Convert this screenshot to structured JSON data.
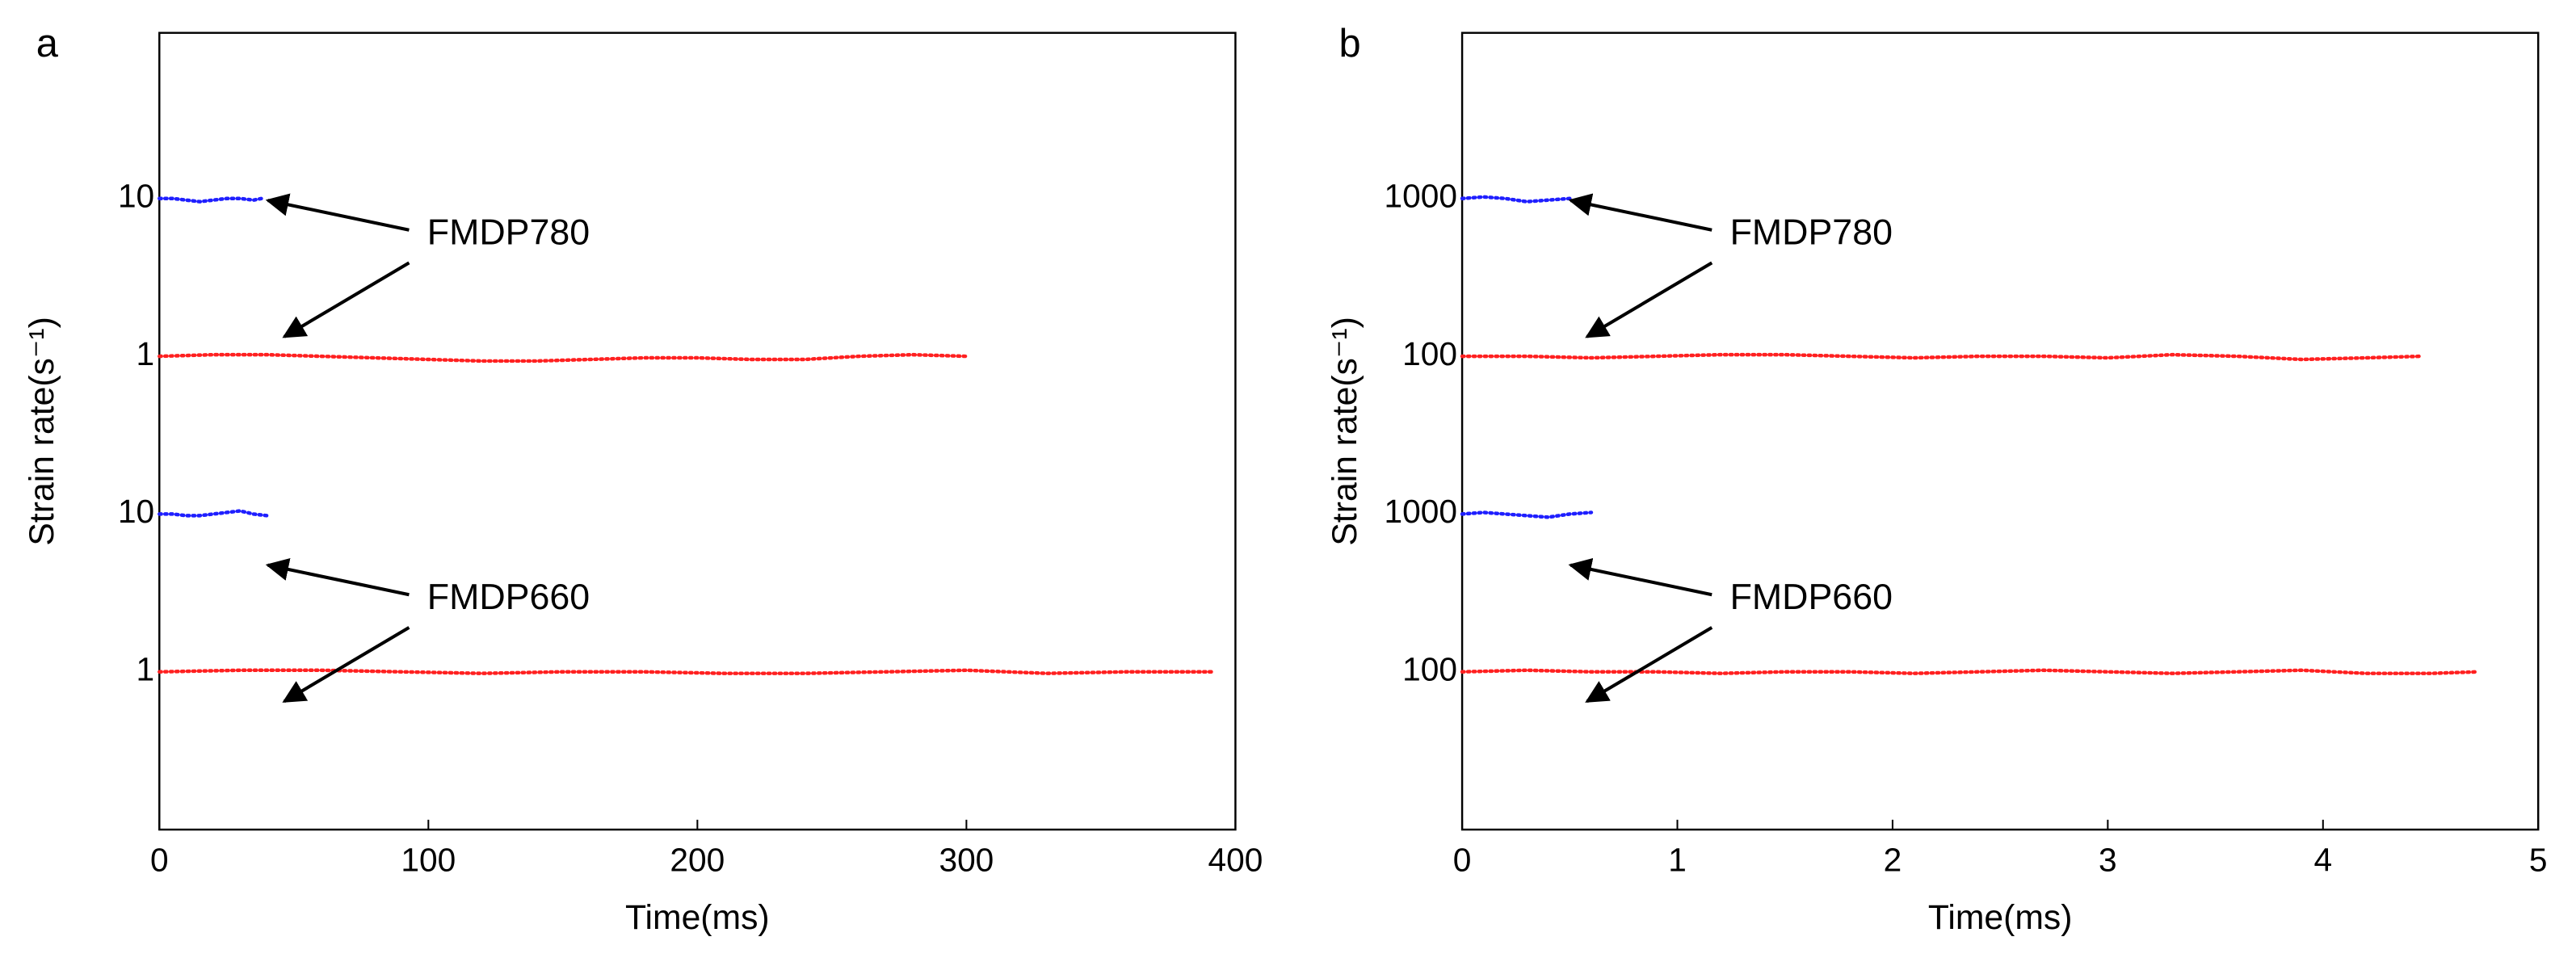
{
  "chart_data": [
    {
      "type": "line",
      "panel_label": "a",
      "xlabel": "Time(ms)",
      "ylabel": "Strain rate(s⁻¹)",
      "xlim": [
        0,
        400
      ],
      "xticks": [
        0,
        100,
        200,
        300,
        400
      ],
      "ylim": [
        0,
        5.05
      ],
      "yticks": [
        1,
        {
          "value": 2,
          "label": "10"
        },
        {
          "value": 3,
          "label": "1"
        },
        {
          "value": 4,
          "label": "10"
        }
      ],
      "annotations": [
        "FMDP780",
        "FMDP660"
      ],
      "series": [
        {
          "color": "#1f1fff",
          "x": [
            0,
            5,
            10,
            15,
            20,
            25,
            30,
            35,
            38
          ],
          "values": [
            4.0,
            4.0,
            3.99,
            3.98,
            3.99,
            4.0,
            4.0,
            3.99,
            4.0
          ]
        },
        {
          "color": "#ff2020",
          "x": [
            0,
            20,
            40,
            60,
            80,
            100,
            120,
            140,
            160,
            180,
            200,
            220,
            240,
            260,
            280,
            300
          ],
          "values": [
            3.0,
            3.01,
            3.01,
            3.0,
            2.99,
            2.98,
            2.97,
            2.97,
            2.98,
            2.99,
            2.99,
            2.98,
            2.98,
            3.0,
            3.01,
            3.0
          ]
        },
        {
          "color": "#1f1fff",
          "x": [
            0,
            5,
            10,
            15,
            20,
            25,
            30,
            35,
            40
          ],
          "values": [
            2.0,
            2.0,
            1.99,
            1.99,
            2.0,
            2.01,
            2.02,
            2.0,
            1.99
          ]
        },
        {
          "color": "#ff2020",
          "x": [
            0,
            30,
            60,
            90,
            120,
            150,
            180,
            210,
            240,
            270,
            300,
            330,
            360,
            392
          ],
          "values": [
            1.0,
            1.01,
            1.01,
            1.0,
            0.99,
            1.0,
            1.0,
            0.99,
            0.99,
            1.0,
            1.01,
            0.99,
            1.0,
            1.0
          ]
        }
      ]
    },
    {
      "type": "line",
      "panel_label": "b",
      "xlabel": "Time(ms)",
      "ylabel": "Strain rate(s⁻¹)",
      "xlim": [
        0,
        5
      ],
      "xticks": [
        0,
        1,
        2,
        3,
        4,
        5
      ],
      "ylim": [
        0,
        5.05
      ],
      "yticks": [
        {
          "value": 1,
          "label": "100"
        },
        {
          "value": 2,
          "label": "1000"
        },
        {
          "value": 3,
          "label": "100"
        },
        {
          "value": 4,
          "label": "1000"
        }
      ],
      "annotations": [
        "FMDP780",
        "FMDP660"
      ],
      "series": [
        {
          "color": "#1f1fff",
          "x": [
            0,
            0.1,
            0.2,
            0.3,
            0.4,
            0.5
          ],
          "values": [
            4.0,
            4.01,
            4.0,
            3.98,
            3.99,
            4.0
          ]
        },
        {
          "color": "#ff2020",
          "x": [
            0,
            0.3,
            0.6,
            0.9,
            1.2,
            1.5,
            1.8,
            2.1,
            2.4,
            2.7,
            3.0,
            3.3,
            3.6,
            3.9,
            4.2,
            4.45
          ],
          "values": [
            3.0,
            3.0,
            2.99,
            3.0,
            3.01,
            3.01,
            3.0,
            2.99,
            3.0,
            3.0,
            2.99,
            3.01,
            3.0,
            2.98,
            2.99,
            3.0
          ]
        },
        {
          "color": "#1f1fff",
          "x": [
            0,
            0.1,
            0.2,
            0.3,
            0.4,
            0.5,
            0.6
          ],
          "values": [
            2.0,
            2.01,
            2.0,
            1.99,
            1.98,
            2.0,
            2.01
          ]
        },
        {
          "color": "#ff2020",
          "x": [
            0,
            0.3,
            0.6,
            0.9,
            1.2,
            1.5,
            1.8,
            2.1,
            2.4,
            2.7,
            3.0,
            3.3,
            3.6,
            3.9,
            4.2,
            4.5,
            4.72
          ],
          "values": [
            1.0,
            1.01,
            1.0,
            1.0,
            0.99,
            1.0,
            1.0,
            0.99,
            1.0,
            1.01,
            1.0,
            0.99,
            1.0,
            1.01,
            0.99,
            0.99,
            1.0
          ]
        }
      ]
    }
  ]
}
